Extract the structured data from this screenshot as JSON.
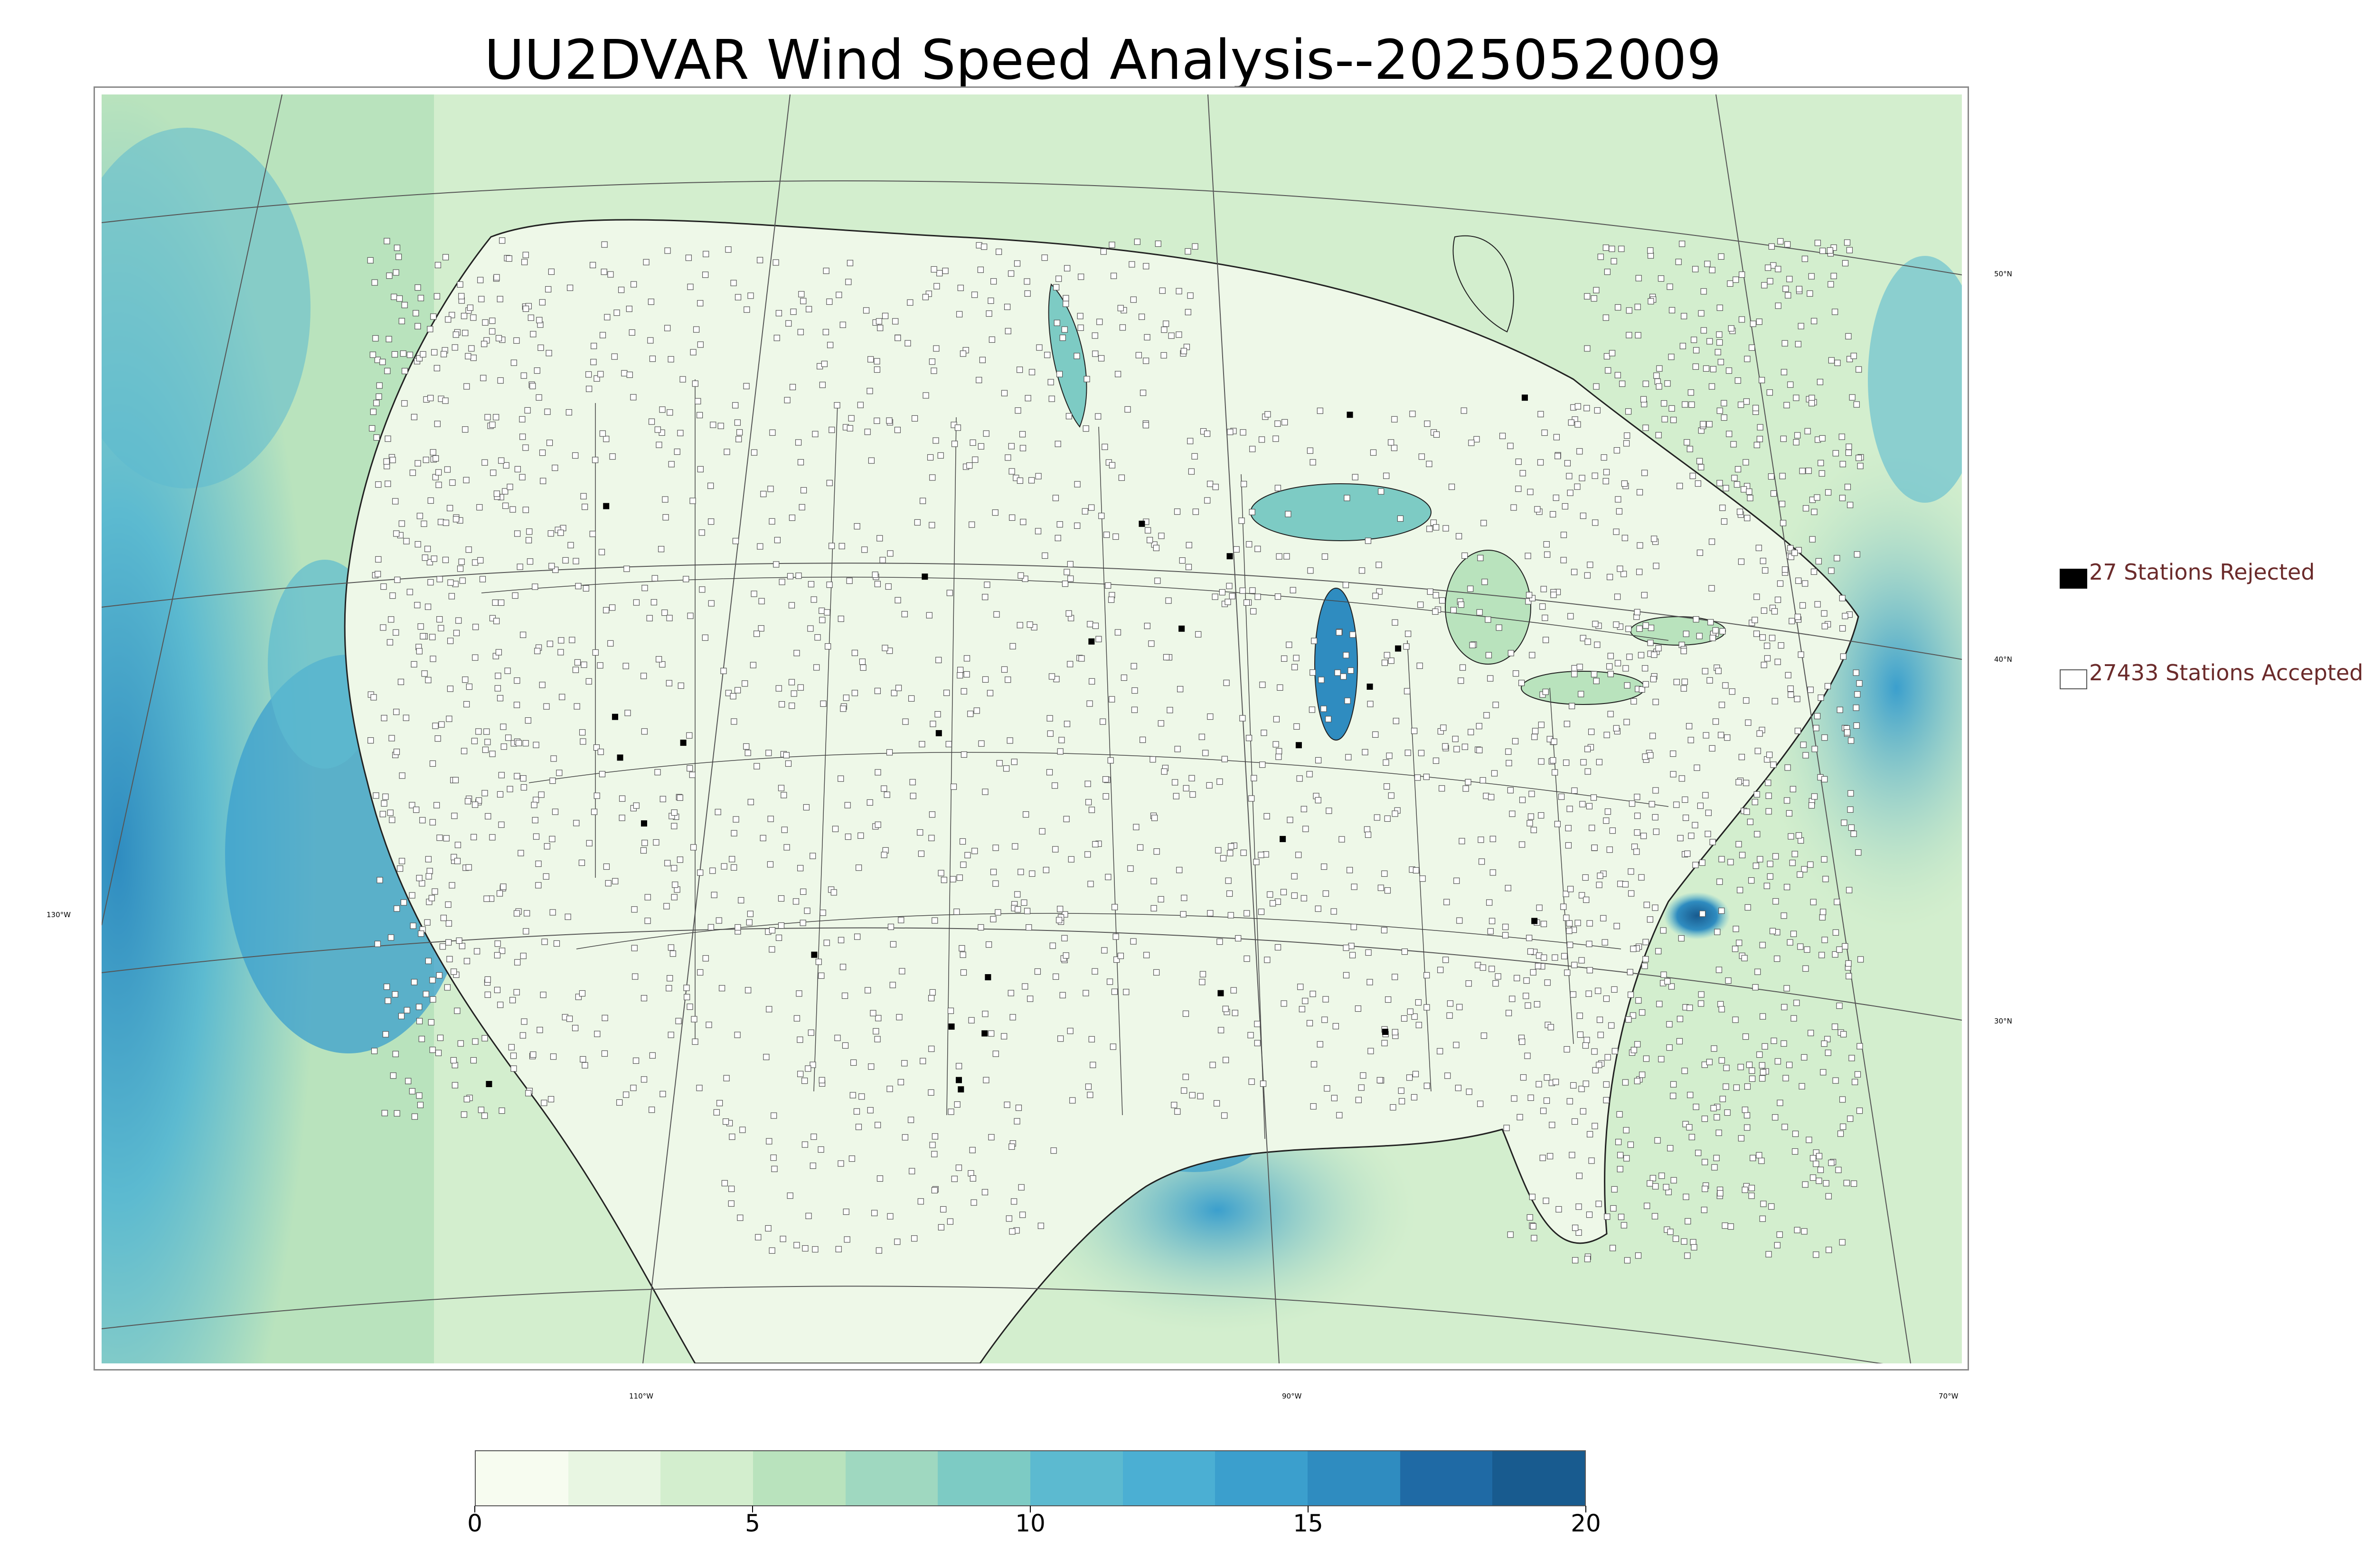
{
  "title": "UU2DVAR Wind Speed Analysis--2025052009",
  "map": {
    "latitude_labels": [
      "50°N",
      "40°N",
      "30°N"
    ],
    "longitude_labels": [
      "130°W",
      "110°W",
      "90°W",
      "70°W"
    ],
    "colors": {
      "land_low": "#f4fbee",
      "land_mid": "#cdebc6",
      "ocean_mid": "#7dcbc4",
      "ocean_high": "#3a9ac9",
      "ocean_peak": "#1f6aa5",
      "borders": "#333333",
      "station_accepted": "#ffffff",
      "station_rejected": "#000000"
    }
  },
  "legend": {
    "rejected_label": "27 Stations Rejected",
    "accepted_label": "27433 Stations Accepted"
  },
  "colorbar": {
    "ticks": [
      "0",
      "5",
      "10",
      "15",
      "20"
    ],
    "tick_values": [
      0,
      5,
      10,
      15,
      20
    ],
    "min": 0,
    "max": 20,
    "colors": [
      "#f7fcf0",
      "#e8f6e2",
      "#d3eece",
      "#b9e3bd",
      "#9fd8c0",
      "#7dcbc4",
      "#5cbad0",
      "#4bafd3",
      "#3b9fcd",
      "#2f8cc0",
      "#1f6aa5",
      "#185b8f"
    ]
  }
}
